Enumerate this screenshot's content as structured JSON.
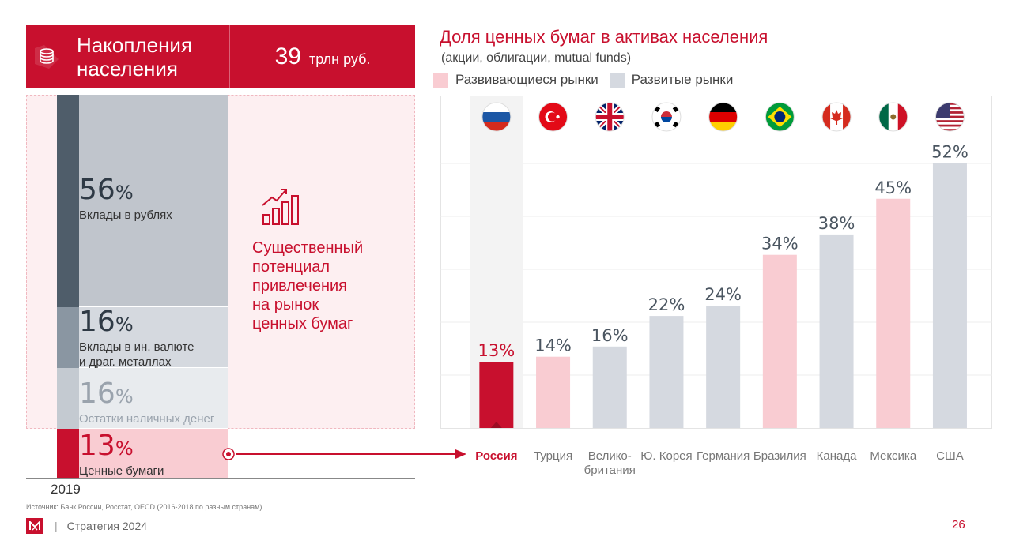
{
  "header": {
    "title_line1": "Накопления",
    "title_line2": "населения",
    "value": "39",
    "unit": "трлн руб."
  },
  "savings": {
    "segments": [
      {
        "pct": "56",
        "pct_sign": "%",
        "label_line1": "Вклады в рублях",
        "label_line2": "",
        "share": 56
      },
      {
        "pct": "16",
        "pct_sign": "%",
        "label_line1": "Вклады в ин. валюте",
        "label_line2": "и драг. металлах",
        "share": 16
      },
      {
        "pct": "16",
        "pct_sign": "%",
        "label_line1": "Остатки наличных денег",
        "label_line2": "",
        "share": 16
      },
      {
        "pct": "13",
        "pct_sign": "%",
        "label_line1": "Ценные бумаги",
        "label_line2": "",
        "share": 13
      }
    ],
    "year": "2019",
    "potential_text": [
      "Существенный",
      "потенциал",
      "привлечения",
      "на рынок",
      "ценных бумаг"
    ]
  },
  "chart_data": {
    "type": "bar",
    "title": "Доля ценных бумаг в активах населения",
    "subtitle": "(акции, облигации, mutual funds)",
    "legend": [
      {
        "name": "Развивающиеся рынки",
        "color": "#f9ccd2"
      },
      {
        "name": "Развитые рынки",
        "color": "#d5d9e0"
      }
    ],
    "categories": [
      "Россия",
      "Турция",
      "Велико- британия",
      "Ю. Корея",
      "Германия",
      "Бразилия",
      "Канада",
      "Мексика",
      "США"
    ],
    "category_lines": [
      [
        "Россия"
      ],
      [
        "Турция"
      ],
      [
        "Велико-",
        "британия"
      ],
      [
        "Ю. Корея"
      ],
      [
        "Германия"
      ],
      [
        "Бразилия"
      ],
      [
        "Канада"
      ],
      [
        "Мексика"
      ],
      [
        "США"
      ]
    ],
    "values": [
      13,
      14,
      16,
      22,
      24,
      34,
      38,
      45,
      52
    ],
    "value_labels": [
      "13%",
      "14%",
      "16%",
      "22%",
      "24%",
      "34%",
      "38%",
      "45%",
      "52%"
    ],
    "market_type": [
      "highlight",
      "emerging",
      "developed",
      "developed",
      "developed",
      "emerging",
      "developed",
      "emerging",
      "developed"
    ],
    "flags": [
      "russia-flag",
      "turkey-flag",
      "uk-flag",
      "south-korea-flag",
      "germany-flag",
      "brazil-flag",
      "canada-flag",
      "mexico-flag",
      "usa-flag"
    ],
    "ylim": [
      0,
      60
    ],
    "colors": {
      "highlight": "#c8102e",
      "emerging": "#f9ccd2",
      "developed": "#d5d9e0"
    }
  },
  "footer": {
    "source": "Источник: Банк России, Росстат, OECD (2016-2018 по разным странам)",
    "separator": "|",
    "strategy": "Стратегия 2024",
    "page": "26"
  }
}
